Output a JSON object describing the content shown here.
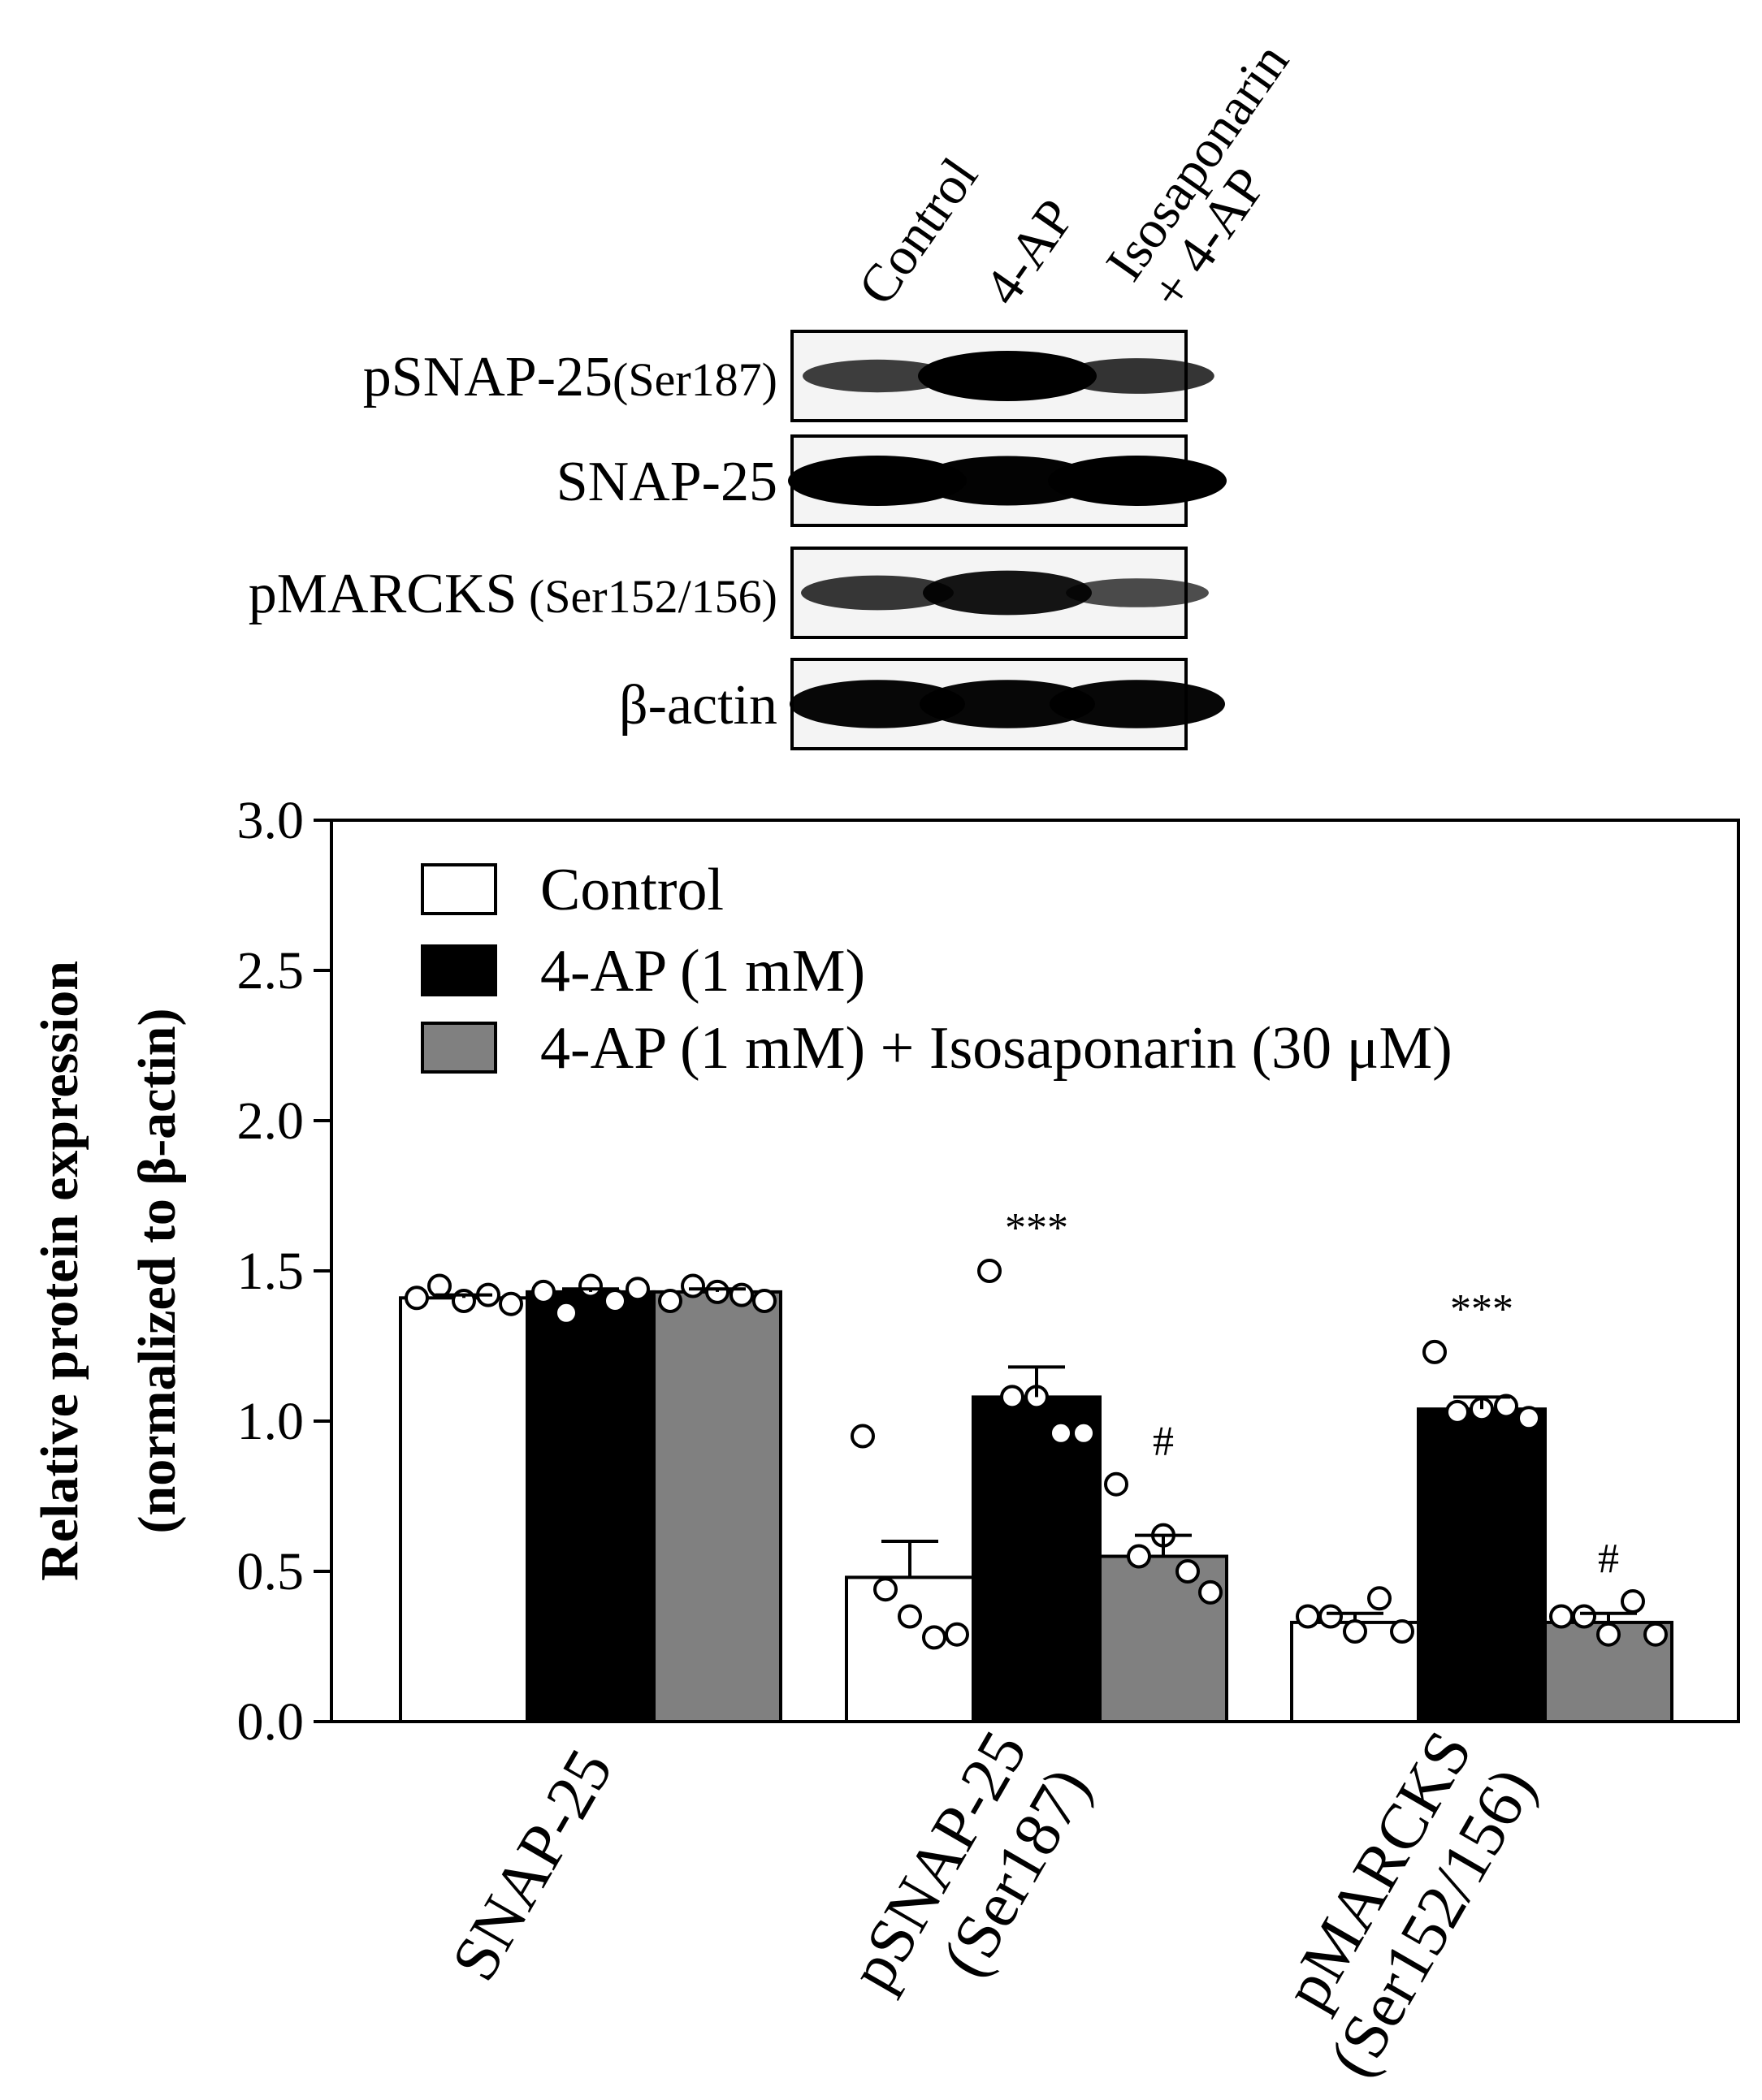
{
  "blot": {
    "lanes": [
      "Control",
      "4-AP",
      "Isosaponarin",
      "+ 4-AP"
    ],
    "rows": [
      {
        "name": "pSNAP-25",
        "suffix": "(Ser187)",
        "intensity": [
          0.55,
          1.0,
          0.62
        ]
      },
      {
        "name": "SNAP-25",
        "suffix": "",
        "intensity": [
          1.0,
          0.98,
          1.0
        ]
      },
      {
        "name": "pMARCKS",
        "suffix": " (Ser152/156)",
        "intensity": [
          0.6,
          0.85,
          0.45
        ]
      },
      {
        "name": "β-actin",
        "suffix": "",
        "intensity": [
          0.95,
          0.95,
          0.95
        ]
      }
    ]
  },
  "chart_data": {
    "type": "bar",
    "title": "",
    "ylabel_line1": "Relative protein expression",
    "ylabel_line2": "(normalized to β-actin)",
    "ylim": [
      0,
      3.0
    ],
    "yticks": [
      "0.0",
      "0.5",
      "1.0",
      "1.5",
      "2.0",
      "2.5",
      "3.0"
    ],
    "grid": false,
    "legend_position": "top-left",
    "categories": [
      {
        "line1": "SNAP-25",
        "line2": ""
      },
      {
        "line1": "pSNAP-25",
        "line2": "(Ser187)"
      },
      {
        "line1": "pMARCKS",
        "line2": "(Ser152/156)"
      }
    ],
    "series": [
      {
        "name": "Control",
        "color": "#ffffff",
        "values": [
          1.41,
          0.48,
          0.33
        ],
        "sem": [
          0.01,
          0.12,
          0.03
        ],
        "points": [
          [
            1.41,
            1.45,
            1.4,
            1.42,
            1.39
          ],
          [
            0.95,
            0.44,
            0.35,
            0.28,
            0.29
          ],
          [
            0.35,
            0.35,
            0.3,
            0.41,
            0.3
          ]
        ],
        "significance": [
          "",
          "",
          ""
        ]
      },
      {
        "name": "4-AP (1 mM)",
        "color": "#000000",
        "values": [
          1.43,
          1.08,
          1.04
        ],
        "sem": [
          0.01,
          0.1,
          0.04
        ],
        "points": [
          [
            1.43,
            1.36,
            1.45,
            1.4,
            1.44
          ],
          [
            1.5,
            1.08,
            1.08,
            0.96,
            0.96
          ],
          [
            1.23,
            1.03,
            1.04,
            1.05,
            1.01
          ]
        ],
        "significance": [
          "",
          "***",
          "***"
        ]
      },
      {
        "name": "4-AP (1 mM) + Isosaponarin (30 μM)",
        "color": "#808080",
        "values": [
          1.43,
          0.55,
          0.33
        ],
        "sem": [
          0.01,
          0.07,
          0.03
        ],
        "points": [
          [
            1.4,
            1.45,
            1.43,
            1.42,
            1.4
          ],
          [
            0.79,
            0.55,
            0.62,
            0.5,
            0.43
          ],
          [
            0.35,
            0.35,
            0.29,
            0.4,
            0.29
          ]
        ],
        "significance": [
          "",
          "#",
          "#"
        ]
      }
    ]
  }
}
